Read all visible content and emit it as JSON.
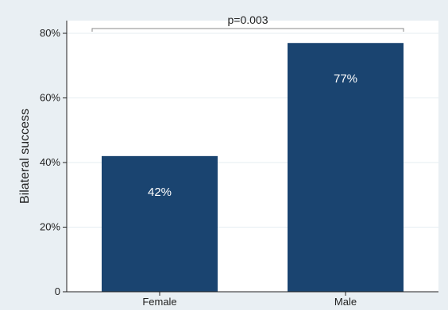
{
  "chart_data": {
    "type": "bar",
    "title": "",
    "xlabel": "",
    "ylabel": "Bilateral success",
    "categories": [
      "Female",
      "Male"
    ],
    "values": [
      42,
      77
    ],
    "data_labels": [
      "42%",
      "77%"
    ],
    "ylim": [
      0,
      80
    ],
    "yticks": [
      0,
      20,
      40,
      60,
      80
    ],
    "ytick_labels": [
      "0",
      "20%",
      "40%",
      "60%",
      "80%"
    ],
    "grid": true,
    "legend": "none",
    "annotation": {
      "text": "p=0.003",
      "from_category": "Female",
      "to_category": "Male"
    },
    "colors": {
      "bar": "#1a4470",
      "background": "#e9eff3",
      "plot_background": "#ffffff",
      "grid": "#e6eef2",
      "axis": "#222222",
      "bracket": "#888888"
    }
  }
}
